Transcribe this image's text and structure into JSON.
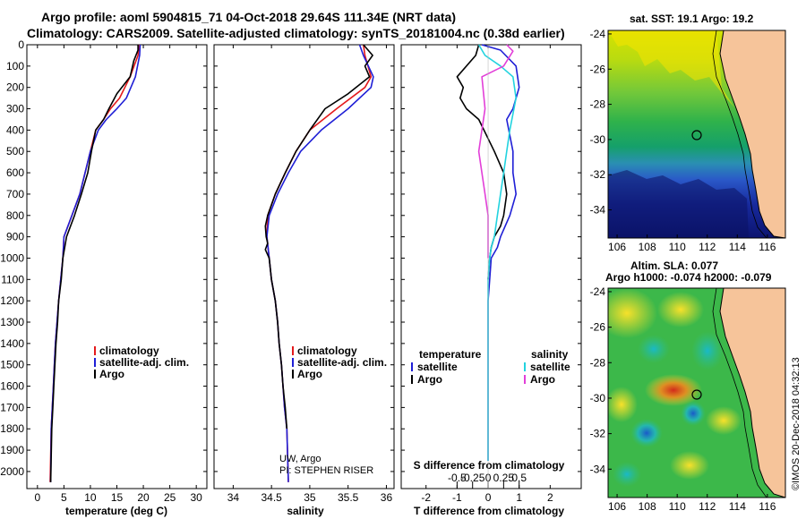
{
  "title_line1": "Argo profile: aoml 5904815_71 04-Oct-2018 29.64S 111.34E (NRT data)",
  "title_line2": "Climatology: CARS2009. Satellite-adjusted climatology: synTS_20181004.nc (0.38d earlier)",
  "colors": {
    "climatology": "#e41a1c",
    "satellite": "#1f1fd6",
    "argo": "#000000",
    "sal_satellite": "#22d3df",
    "sal_argo": "#e23fd8",
    "land": "#f6c49a"
  },
  "credit": "©IMOS 20-Dec-2018 04:32:13",
  "chart_data": [
    {
      "type": "line",
      "xlabel": "temperature (deg C)",
      "xlim": [
        -2,
        32
      ],
      "ylim": [
        2080,
        0
      ],
      "xticks": [
        0,
        5,
        10,
        15,
        20,
        25,
        30
      ],
      "yticks": [
        0,
        100,
        200,
        300,
        400,
        500,
        600,
        700,
        800,
        900,
        1000,
        1100,
        1200,
        1300,
        1400,
        1500,
        1600,
        1700,
        1800,
        1900,
        2000
      ],
      "legend": [
        "climatology",
        "satellite-adj. clim.",
        "Argo"
      ],
      "series": [
        {
          "name": "climatology",
          "color": "#e41a1c",
          "x": [
            19.2,
            19.0,
            17.5,
            15.5,
            13.8,
            12.5,
            11.0,
            10.0,
            9.0,
            8.0,
            6.5,
            5.0,
            4.8,
            4.4,
            4.0,
            3.7,
            3.4,
            3.2,
            3.0,
            2.8,
            2.6,
            2.4
          ],
          "y": [
            0,
            50,
            150,
            250,
            300,
            350,
            400,
            500,
            600,
            700,
            800,
            900,
            1000,
            1100,
            1200,
            1300,
            1400,
            1500,
            1600,
            1700,
            1800,
            2050
          ]
        },
        {
          "name": "satellite-adj. clim.",
          "color": "#1f1fd6",
          "x": [
            19.4,
            19.3,
            18.5,
            16.8,
            15.0,
            13.0,
            11.5,
            10.0,
            9.0,
            8.0,
            6.5,
            5.0,
            4.8,
            4.4,
            4.0,
            3.7,
            3.4,
            3.2,
            3.0,
            2.8,
            2.6,
            2.5
          ],
          "y": [
            0,
            50,
            150,
            250,
            300,
            350,
            400,
            500,
            600,
            700,
            800,
            900,
            1000,
            1100,
            1200,
            1300,
            1400,
            1500,
            1600,
            1700,
            1800,
            2050
          ]
        },
        {
          "name": "Argo",
          "color": "#000000",
          "x": [
            19.0,
            19.0,
            18.2,
            17.5,
            15.0,
            13.5,
            12.5,
            11.0,
            10.2,
            9.5,
            8.3,
            7.0,
            5.5,
            4.8,
            4.5,
            4.0,
            3.8,
            3.5,
            3.3,
            3.1,
            2.9,
            2.7,
            2.5
          ],
          "y": [
            0,
            25,
            75,
            150,
            230,
            300,
            350,
            400,
            500,
            600,
            700,
            800,
            900,
            1000,
            1100,
            1200,
            1300,
            1400,
            1500,
            1600,
            1700,
            1800,
            2050
          ]
        }
      ],
      "legend_entries": [
        {
          "label": "climatology",
          "color": "#e41a1c"
        },
        {
          "label": "satellite-adj. clim.",
          "color": "#1f1fd6"
        },
        {
          "label": "Argo",
          "color": "#000000"
        }
      ]
    },
    {
      "type": "line",
      "xlabel": "salinity",
      "xlim": [
        33.75,
        36.1
      ],
      "ylim": [
        2080,
        0
      ],
      "xticks": [
        34,
        34.5,
        35,
        35.5,
        36
      ],
      "xticklabels": [
        "34",
        "34.5",
        "35",
        "35.5",
        "36"
      ],
      "series": [
        {
          "name": "climatology",
          "color": "#e41a1c",
          "x": [
            35.7,
            35.72,
            35.8,
            35.72,
            35.35,
            35.0,
            34.82,
            34.68,
            34.55,
            34.45,
            34.44,
            34.47,
            34.5,
            34.55,
            34.58,
            34.6,
            34.63,
            34.65,
            34.67,
            34.7,
            34.72
          ],
          "y": [
            0,
            50,
            150,
            200,
            300,
            400,
            500,
            600,
            700,
            800,
            900,
            1000,
            1100,
            1200,
            1300,
            1400,
            1500,
            1600,
            1700,
            1800,
            2050
          ]
        },
        {
          "name": "satellite-adj. clim.",
          "color": "#1f1fd6",
          "x": [
            35.65,
            35.7,
            35.83,
            35.8,
            35.5,
            35.15,
            34.88,
            34.72,
            34.58,
            34.47,
            34.44,
            34.47,
            34.5,
            34.55,
            34.58,
            34.6,
            34.63,
            34.65,
            34.67,
            34.7,
            34.72
          ],
          "y": [
            0,
            50,
            150,
            200,
            300,
            400,
            500,
            600,
            700,
            800,
            900,
            1000,
            1100,
            1200,
            1300,
            1400,
            1500,
            1600,
            1700,
            1800,
            2050
          ]
        },
        {
          "name": "Argo",
          "color": "#000000",
          "x": [
            35.7,
            35.82,
            35.72,
            35.78,
            35.5,
            35.2,
            35.0,
            34.82,
            34.68,
            34.55,
            34.45,
            34.42,
            34.43,
            34.45,
            34.42,
            34.47,
            34.5,
            34.55,
            34.58,
            34.6,
            34.63,
            34.65,
            34.68,
            34.7
          ],
          "y": [
            0,
            50,
            100,
            150,
            230,
            300,
            400,
            500,
            600,
            700,
            800,
            850,
            900,
            930,
            960,
            1000,
            1100,
            1200,
            1300,
            1400,
            1500,
            1600,
            1700,
            1800
          ]
        }
      ],
      "legend_entries": [
        {
          "label": "climatology",
          "color": "#e41a1c"
        },
        {
          "label": "satellite-adj. clim.",
          "color": "#1f1fd6"
        },
        {
          "label": "Argo",
          "color": "#000000"
        }
      ],
      "annotations": [
        "UW, Argo",
        "PI: STEPHEN RISER"
      ]
    },
    {
      "type": "line",
      "xlabel": "T difference from climatology",
      "xlabel_top": "S difference from climatology",
      "xlim": [
        -2.8,
        3.0
      ],
      "ylim": [
        2080,
        0
      ],
      "xticks": [
        -2,
        -1,
        0,
        1,
        2
      ],
      "xticks_top": [
        -1.0,
        -0.5,
        0,
        0.5,
        1.0
      ],
      "xticklabels_top": [
        "-0.5",
        "-0.25",
        "0",
        "0.25",
        "0.5"
      ],
      "series": [
        {
          "name": "satellite",
          "color": "#1f1fd6",
          "x": [
            -0.2,
            0.4,
            0.9,
            1.0,
            0.8,
            0.6,
            0.8,
            0.8,
            0.9,
            0.7,
            0.4,
            0.3,
            0.1,
            0.05,
            0,
            0,
            0,
            0,
            0,
            0,
            0,
            0
          ],
          "y": [
            0,
            25,
            100,
            200,
            300,
            350,
            500,
            600,
            700,
            800,
            900,
            950,
            1000,
            1100,
            1200,
            1300,
            1400,
            1500,
            1600,
            1700,
            1800,
            1950
          ]
        },
        {
          "name": "Argo",
          "color": "#000000",
          "x": [
            -0.3,
            -0.4,
            -1.0,
            -0.8,
            -0.9,
            -0.7,
            -0.3,
            0.2,
            0.5,
            0.6,
            0.5,
            0.4,
            0.2,
            0.1,
            0.05,
            0
          ],
          "y": [
            0,
            50,
            150,
            200,
            250,
            300,
            350,
            500,
            600,
            700,
            800,
            850,
            900,
            950,
            1000,
            1100
          ]
        },
        {
          "name": "S satellite",
          "color": "#22d3df",
          "x": [
            -0.3,
            -0.1,
            0.4,
            0.8,
            0.9,
            0.7,
            0.6,
            0.5,
            0.4,
            0.3,
            0.2,
            0.1,
            0.05,
            0,
            0,
            0,
            0,
            0,
            0
          ],
          "y": [
            0,
            50,
            100,
            150,
            250,
            400,
            500,
            600,
            700,
            800,
            900,
            950,
            1000,
            1100,
            1200,
            1300,
            1500,
            1700,
            1950
          ]
        },
        {
          "name": "S Argo",
          "color": "#e23fd8",
          "x": [
            0.6,
            0.8,
            0.5,
            -0.2,
            -0.1,
            -0.3,
            -0.2,
            -0.1,
            0,
            0,
            0,
            0
          ],
          "y": [
            0,
            30,
            100,
            150,
            300,
            500,
            600,
            700,
            800,
            900,
            950,
            1000
          ]
        }
      ],
      "legend_entries": [
        {
          "group": "temperature",
          "label": "satellite",
          "color": "#1f1fd6"
        },
        {
          "group": "temperature",
          "label": "Argo",
          "color": "#000000"
        },
        {
          "group": "salinity",
          "label": "satellite",
          "color": "#22d3df"
        },
        {
          "group": "salinity",
          "label": "Argo",
          "color": "#e23fd8"
        }
      ],
      "legend_headers": [
        "temperature",
        "salinity"
      ]
    }
  ],
  "maps": [
    {
      "title": "sat. SST: 19.1 Argo: 19.2",
      "xticks": [
        106,
        108,
        110,
        112,
        114,
        116
      ],
      "yticks": [
        -24,
        -26,
        -28,
        -30,
        -32,
        -34
      ],
      "marker": {
        "lon": 111.34,
        "lat": -29.64
      }
    },
    {
      "title_line1": "Altim. SLA: 0.077",
      "title_line2": "Argo h1000: -0.074 h2000: -0.079",
      "xticks": [
        106,
        108,
        110,
        112,
        114,
        116
      ],
      "yticks": [
        -24,
        -26,
        -28,
        -30,
        -32,
        -34
      ],
      "marker": {
        "lon": 111.34,
        "lat": -29.64
      }
    }
  ]
}
